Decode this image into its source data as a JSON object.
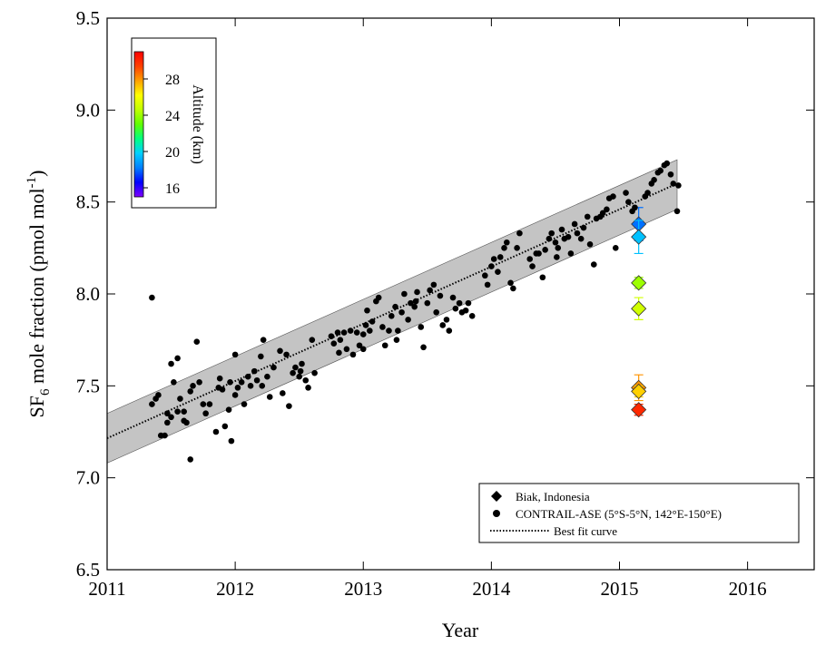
{
  "chart_data": {
    "type": "scatter",
    "xlabel": "Year",
    "ylabel": [
      "SF",
      "6",
      " mole fraction (pmol mol",
      "-1",
      ")"
    ],
    "xlim": [
      2011,
      2016.52
    ],
    "ylim": [
      6.5,
      9.5
    ],
    "xticks": [
      2011,
      2012,
      2013,
      2014,
      2015,
      2016
    ],
    "yticks": [
      6.5,
      {
        "value": 7,
        "label": "7.0"
      },
      7.5,
      {
        "value": 8,
        "label": "8.0"
      },
      8.5,
      {
        "value": 9,
        "label": "9.0"
      },
      9.5
    ],
    "grid": false,
    "legend": "lower right",
    "colorbar": {
      "label": "Altitude (km)",
      "lim": [
        15,
        31
      ],
      "ticks": [
        16,
        20,
        24,
        28
      ],
      "colormap": [
        "#7f00ff",
        "#0000ff",
        "#0080ff",
        "#00d0ff",
        "#00ff80",
        "#60ff00",
        "#c0ff00",
        "#ffff00",
        "#ffa000",
        "#ff4000",
        "#ff0000"
      ]
    },
    "series": [
      {
        "name": "Biak, Indonesia",
        "marker": "diamond",
        "color": "#000000",
        "x": [
          2015.15,
          2015.15,
          2015.15,
          2015.15,
          2015.15,
          2015.15,
          2015.15
        ],
        "values": [
          8.38,
          8.31,
          8.06,
          7.92,
          7.49,
          7.47,
          7.37
        ],
        "errors": [
          0.09,
          0.09,
          0.03,
          0.06,
          0.07,
          0.03,
          0.03
        ],
        "altitude": [
          18,
          19.5,
          24,
          25,
          28,
          27,
          30
        ]
      },
      {
        "name": "CONTRAIL-ASE (5°S-5°N, 142°E-150°E)",
        "marker": "circle",
        "color": "#000000",
        "x": [
          2011.35,
          2011.35,
          2011.38,
          2011.4,
          2011.42,
          2011.45,
          2011.47,
          2011.47,
          2011.5,
          2011.52,
          2011.5,
          2011.55,
          2011.57,
          2011.55,
          2011.6,
          2011.62,
          2011.6,
          2011.65,
          2011.67,
          2011.65,
          2011.7,
          2011.72,
          2011.75,
          2011.77,
          2011.8,
          2011.85,
          2011.87,
          2011.88,
          2011.9,
          2011.92,
          2011.95,
          2011.97,
          2011.96,
          2012.0,
          2012.02,
          2012.0,
          2012.05,
          2012.07,
          2012.1,
          2012.12,
          2012.15,
          2012.17,
          2012.2,
          2012.22,
          2012.21,
          2012.25,
          2012.27,
          2012.3,
          2012.35,
          2012.37,
          2012.4,
          2012.42,
          2012.45,
          2012.47,
          2012.5,
          2012.52,
          2012.51,
          2012.55,
          2012.57,
          2012.6,
          2012.62,
          2012.75,
          2012.77,
          2012.8,
          2012.82,
          2012.81,
          2012.85,
          2012.87,
          2012.9,
          2012.92,
          2012.95,
          2012.97,
          2013.0,
          2013.0,
          2013.02,
          2013.03,
          2013.05,
          2013.07,
          2013.1,
          2013.12,
          2013.15,
          2013.17,
          2013.2,
          2013.22,
          2013.25,
          2013.27,
          2013.26,
          2013.3,
          2013.32,
          2013.35,
          2013.37,
          2013.4,
          2013.42,
          2013.41,
          2013.45,
          2013.47,
          2013.5,
          2013.52,
          2013.55,
          2013.57,
          2013.6,
          2013.62,
          2013.65,
          2013.67,
          2013.7,
          2013.72,
          2013.75,
          2013.77,
          2013.8,
          2013.82,
          2013.85,
          2013.95,
          2013.97,
          2014.0,
          2014.02,
          2014.05,
          2014.07,
          2014.1,
          2014.12,
          2014.15,
          2014.17,
          2014.2,
          2014.22,
          2014.3,
          2014.32,
          2014.35,
          2014.37,
          2014.4,
          2014.42,
          2014.45,
          2014.47,
          2014.5,
          2014.52,
          2014.51,
          2014.55,
          2014.57,
          2014.6,
          2014.62,
          2014.65,
          2014.67,
          2014.7,
          2014.72,
          2014.75,
          2014.77,
          2014.8,
          2014.82,
          2014.85,
          2014.87,
          2014.9,
          2014.92,
          2014.95,
          2014.97,
          2015.05,
          2015.07,
          2015.1,
          2015.12,
          2015.2,
          2015.22,
          2015.25,
          2015.27,
          2015.3,
          2015.32,
          2015.35,
          2015.37,
          2015.4,
          2015.42,
          2015.45,
          2015.46
        ],
        "values": [
          7.98,
          7.4,
          7.43,
          7.45,
          7.23,
          7.23,
          7.3,
          7.35,
          7.62,
          7.52,
          7.33,
          7.65,
          7.43,
          7.36,
          7.36,
          7.3,
          7.31,
          7.1,
          7.5,
          7.47,
          7.74,
          7.52,
          7.4,
          7.35,
          7.4,
          7.25,
          7.49,
          7.54,
          7.48,
          7.28,
          7.37,
          7.2,
          7.52,
          7.45,
          7.49,
          7.67,
          7.52,
          7.4,
          7.55,
          7.5,
          7.58,
          7.53,
          7.66,
          7.75,
          7.5,
          7.55,
          7.44,
          7.6,
          7.69,
          7.46,
          7.67,
          7.39,
          7.57,
          7.6,
          7.55,
          7.62,
          7.58,
          7.53,
          7.49,
          7.75,
          7.57,
          7.77,
          7.73,
          7.79,
          7.75,
          7.68,
          7.79,
          7.7,
          7.8,
          7.67,
          7.79,
          7.72,
          7.7,
          7.78,
          7.83,
          7.91,
          7.8,
          7.85,
          7.96,
          7.98,
          7.82,
          7.72,
          7.8,
          7.88,
          7.93,
          7.8,
          7.75,
          7.9,
          8.0,
          7.86,
          7.95,
          7.93,
          8.01,
          7.96,
          7.82,
          7.71,
          7.95,
          8.02,
          8.05,
          7.9,
          7.99,
          7.83,
          7.86,
          7.8,
          7.98,
          7.92,
          7.95,
          7.9,
          7.91,
          7.95,
          7.88,
          8.1,
          8.05,
          8.15,
          8.19,
          8.12,
          8.2,
          8.25,
          8.28,
          8.06,
          8.03,
          8.25,
          8.33,
          8.19,
          8.15,
          8.22,
          8.22,
          8.09,
          8.24,
          8.3,
          8.33,
          8.28,
          8.25,
          8.2,
          8.35,
          8.3,
          8.31,
          8.22,
          8.38,
          8.33,
          8.3,
          8.36,
          8.42,
          8.27,
          8.16,
          8.41,
          8.42,
          8.44,
          8.46,
          8.52,
          8.53,
          8.25,
          8.55,
          8.5,
          8.45,
          8.47,
          8.53,
          8.55,
          8.6,
          8.62,
          8.66,
          8.67,
          8.7,
          8.71,
          8.65,
          8.6,
          8.45,
          8.59
        ]
      },
      {
        "name": "Best fit curve",
        "marker": "dotted-line",
        "color": "#000000",
        "x": [
          2011,
          2015.45
        ],
        "values": [
          7.215,
          8.6
        ],
        "band_upper": [
          7.35,
          8.73
        ],
        "band_lower": [
          7.08,
          8.46
        ],
        "band_color": "#c4c4c4"
      }
    ]
  }
}
